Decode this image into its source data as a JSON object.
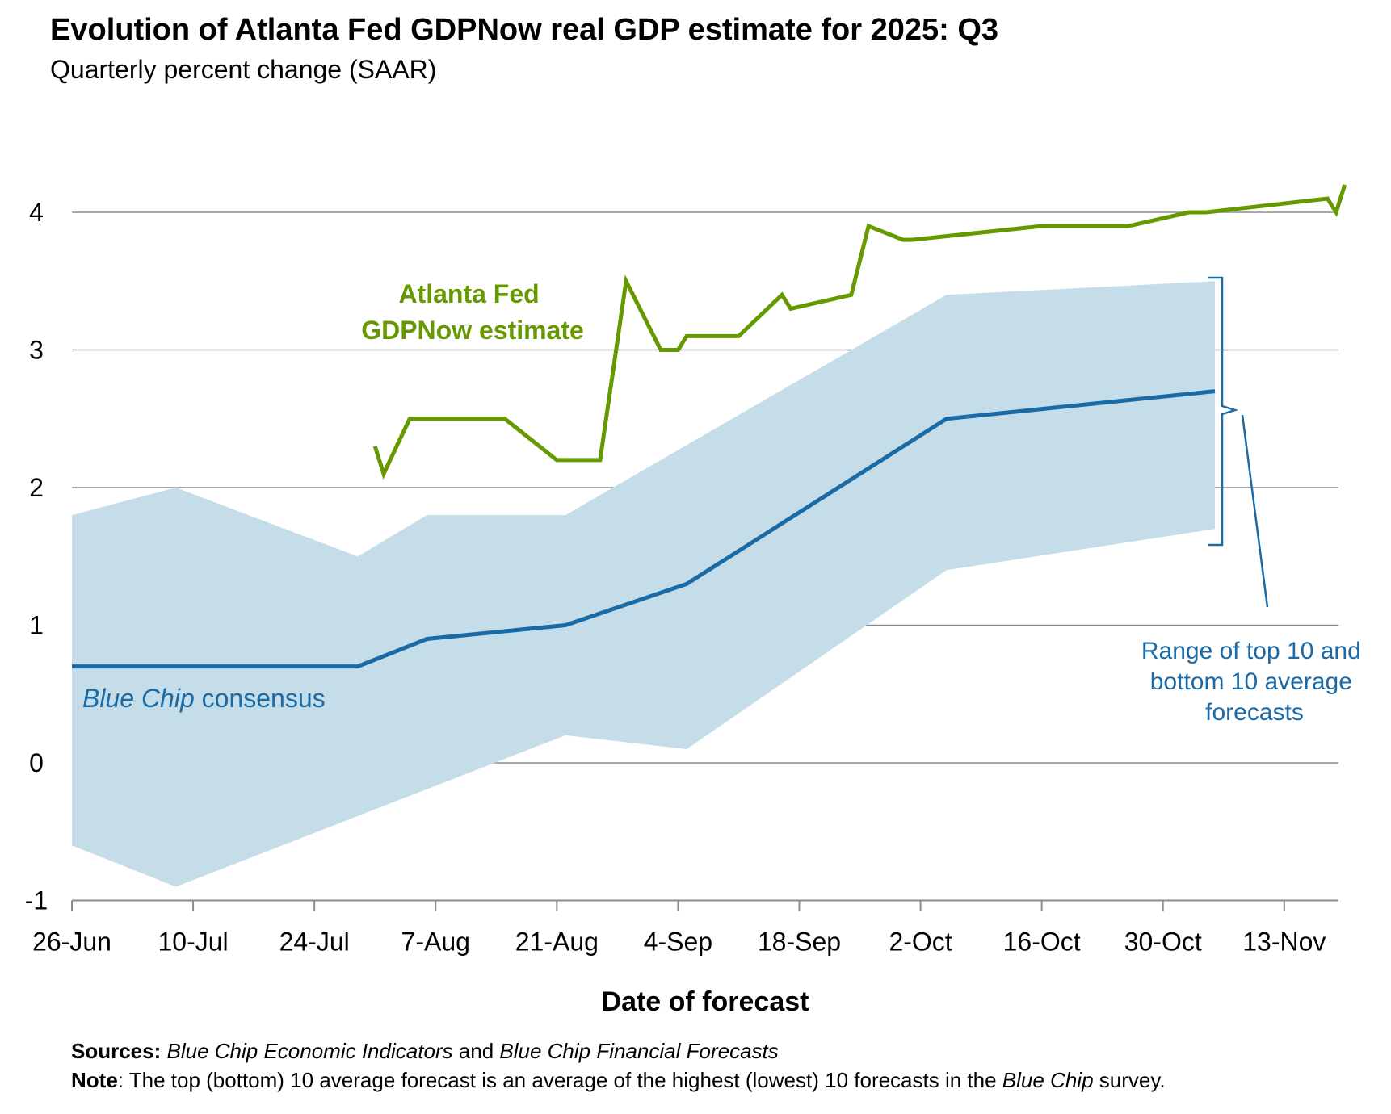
{
  "title": "Evolution of Atlanta Fed GDPNow real GDP estimate for 2025: Q3",
  "subtitle": "Quarterly percent change (SAAR)",
  "colors": {
    "gdpnow": "#669900",
    "consensus": "#1a6aa6",
    "range": "#c5dde8",
    "grid": "#8c8c8c",
    "text": "#000000"
  },
  "annotations": {
    "gdpnow_line1": "Atlanta Fed",
    "gdpnow_line2": "GDPNow estimate",
    "consensus_italic": "Blue Chip",
    "consensus_rest": " consensus",
    "range_line1": "Range of top 10 and",
    "range_line2": "bottom 10 average",
    "range_line3": "forecasts"
  },
  "footer": {
    "sources_label": "Sources:",
    "sources_italic1": "Blue Chip Economic Indicators",
    "sources_and": " and ",
    "sources_italic2": "Blue Chip Financial Forecasts",
    "note_label": "Note",
    "note_text": ": The top (bottom) 10 average forecast is an average of the highest (lowest) 10 forecasts in the ",
    "note_italic": "Blue Chip",
    "note_end": " survey."
  },
  "chart_data": {
    "type": "line",
    "title": "Evolution of Atlanta Fed GDPNow real GDP estimate for 2025: Q3",
    "subtitle": "Quarterly percent change (SAAR)",
    "xlabel": "Date of forecast",
    "ylabel": "",
    "x_unit": "days since 26-Jun-2025",
    "xlim": [
      0,
      147
    ],
    "ylim": [
      -1,
      4.2
    ],
    "grid": true,
    "y_ticks": [
      4,
      3,
      2,
      1,
      0,
      -1
    ],
    "y_tick_labels": [
      "4",
      "3",
      "2",
      "1",
      "0",
      "-1"
    ],
    "x_ticks": [
      0,
      14,
      28,
      42,
      56,
      70,
      84,
      98,
      112,
      126,
      140
    ],
    "x_tick_labels": [
      "26-Jun",
      "10-Jul",
      "24-Jul",
      "7-Aug",
      "21-Aug",
      "4-Sep",
      "18-Sep",
      "2-Oct",
      "16-Oct",
      "30-Oct",
      "13-Nov"
    ],
    "series": [
      {
        "name": "Atlanta Fed GDPNow estimate",
        "x": [
          35,
          36,
          39,
          50,
          56,
          61,
          64,
          68,
          70,
          71,
          77,
          82,
          83,
          90,
          92,
          96,
          97,
          112,
          122,
          129,
          131,
          145,
          146,
          147
        ],
        "y": [
          2.3,
          2.1,
          2.5,
          2.5,
          2.2,
          2.2,
          3.5,
          3.0,
          3.0,
          3.1,
          3.1,
          3.4,
          3.3,
          3.4,
          3.9,
          3.8,
          3.8,
          3.9,
          3.9,
          4.0,
          4.0,
          4.1,
          4.0,
          4.2
        ]
      },
      {
        "name": "Blue Chip consensus",
        "x": [
          0,
          33,
          41,
          57,
          71,
          101,
          132
        ],
        "y": [
          0.7,
          0.7,
          0.9,
          1.0,
          1.3,
          2.5,
          2.7
        ]
      },
      {
        "name": "Top 10 average (range upper)",
        "x": [
          0,
          12,
          33,
          41,
          57,
          101,
          132
        ],
        "y": [
          1.8,
          2.0,
          1.5,
          1.8,
          1.8,
          3.4,
          3.5
        ]
      },
      {
        "name": "Bottom 10 average (range lower)",
        "x": [
          0,
          12,
          57,
          71,
          101,
          132
        ],
        "y": [
          -0.6,
          -0.9,
          0.2,
          0.1,
          1.4,
          1.7
        ]
      }
    ]
  }
}
